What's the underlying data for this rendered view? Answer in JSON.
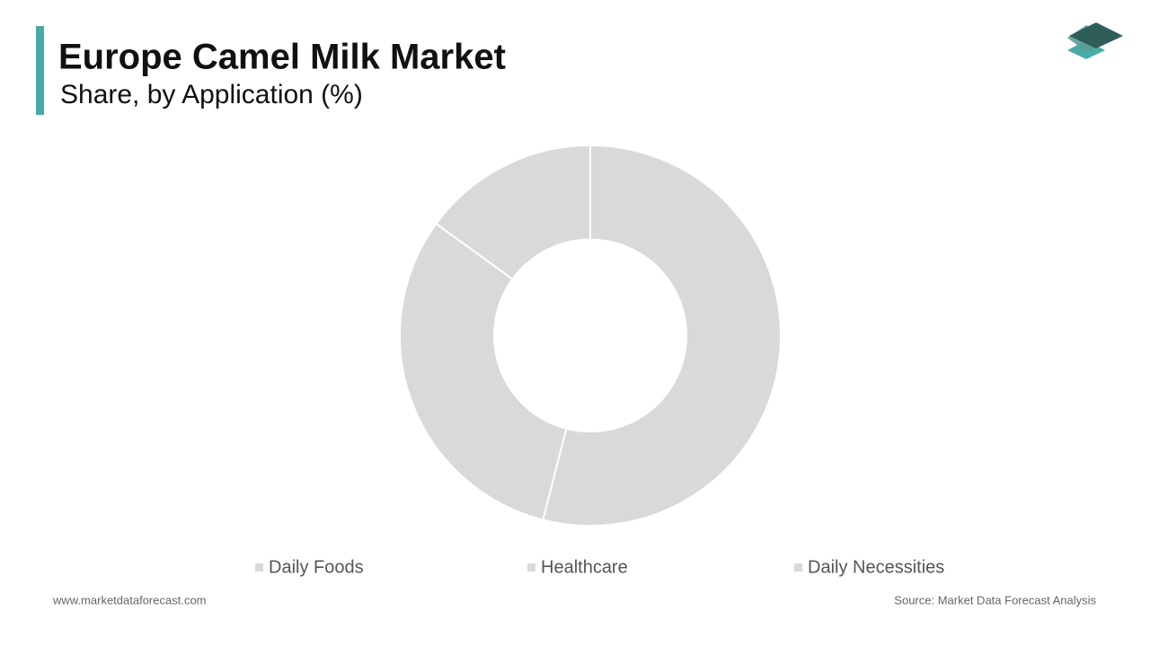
{
  "chart_data": {
    "type": "pie",
    "title": "Europe Camel Milk Market",
    "subtitle": "Share, by Application (%)",
    "categories": [
      "Daily Foods",
      "Healthcare",
      "Daily Necessities"
    ],
    "values": [
      54,
      31,
      15
    ],
    "color": "#d9d9d9",
    "footer_left": "www.marketdataforecast.com",
    "footer_right": "Source: Market Data Forecast Analysis"
  }
}
